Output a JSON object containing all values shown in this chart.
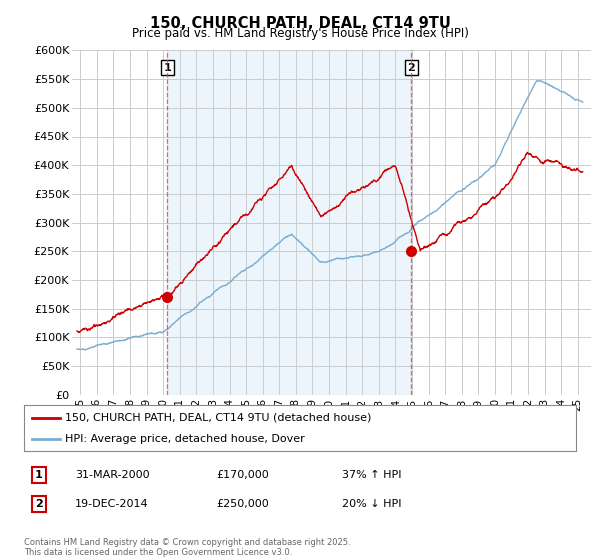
{
  "title": "150, CHURCH PATH, DEAL, CT14 9TU",
  "subtitle": "Price paid vs. HM Land Registry's House Price Index (HPI)",
  "ylim": [
    0,
    600000
  ],
  "yticks": [
    0,
    50000,
    100000,
    150000,
    200000,
    250000,
    300000,
    350000,
    400000,
    450000,
    500000,
    550000,
    600000
  ],
  "ytick_labels": [
    "£0",
    "£50K",
    "£100K",
    "£150K",
    "£200K",
    "£250K",
    "£300K",
    "£350K",
    "£400K",
    "£450K",
    "£500K",
    "£550K",
    "£600K"
  ],
  "price_paid_color": "#cc0000",
  "hpi_color": "#7aadcf",
  "shade_color": "#ddeeff",
  "sale1_date": 2000.25,
  "sale1_price": 170000,
  "sale1_label": "1",
  "sale2_date": 2014.97,
  "sale2_price": 250000,
  "sale2_label": "2",
  "legend_line1": "150, CHURCH PATH, DEAL, CT14 9TU (detached house)",
  "legend_line2": "HPI: Average price, detached house, Dover",
  "footer": "Contains HM Land Registry data © Crown copyright and database right 2025.\nThis data is licensed under the Open Government Licence v3.0.",
  "background_color": "#ffffff",
  "grid_color": "#cccccc"
}
